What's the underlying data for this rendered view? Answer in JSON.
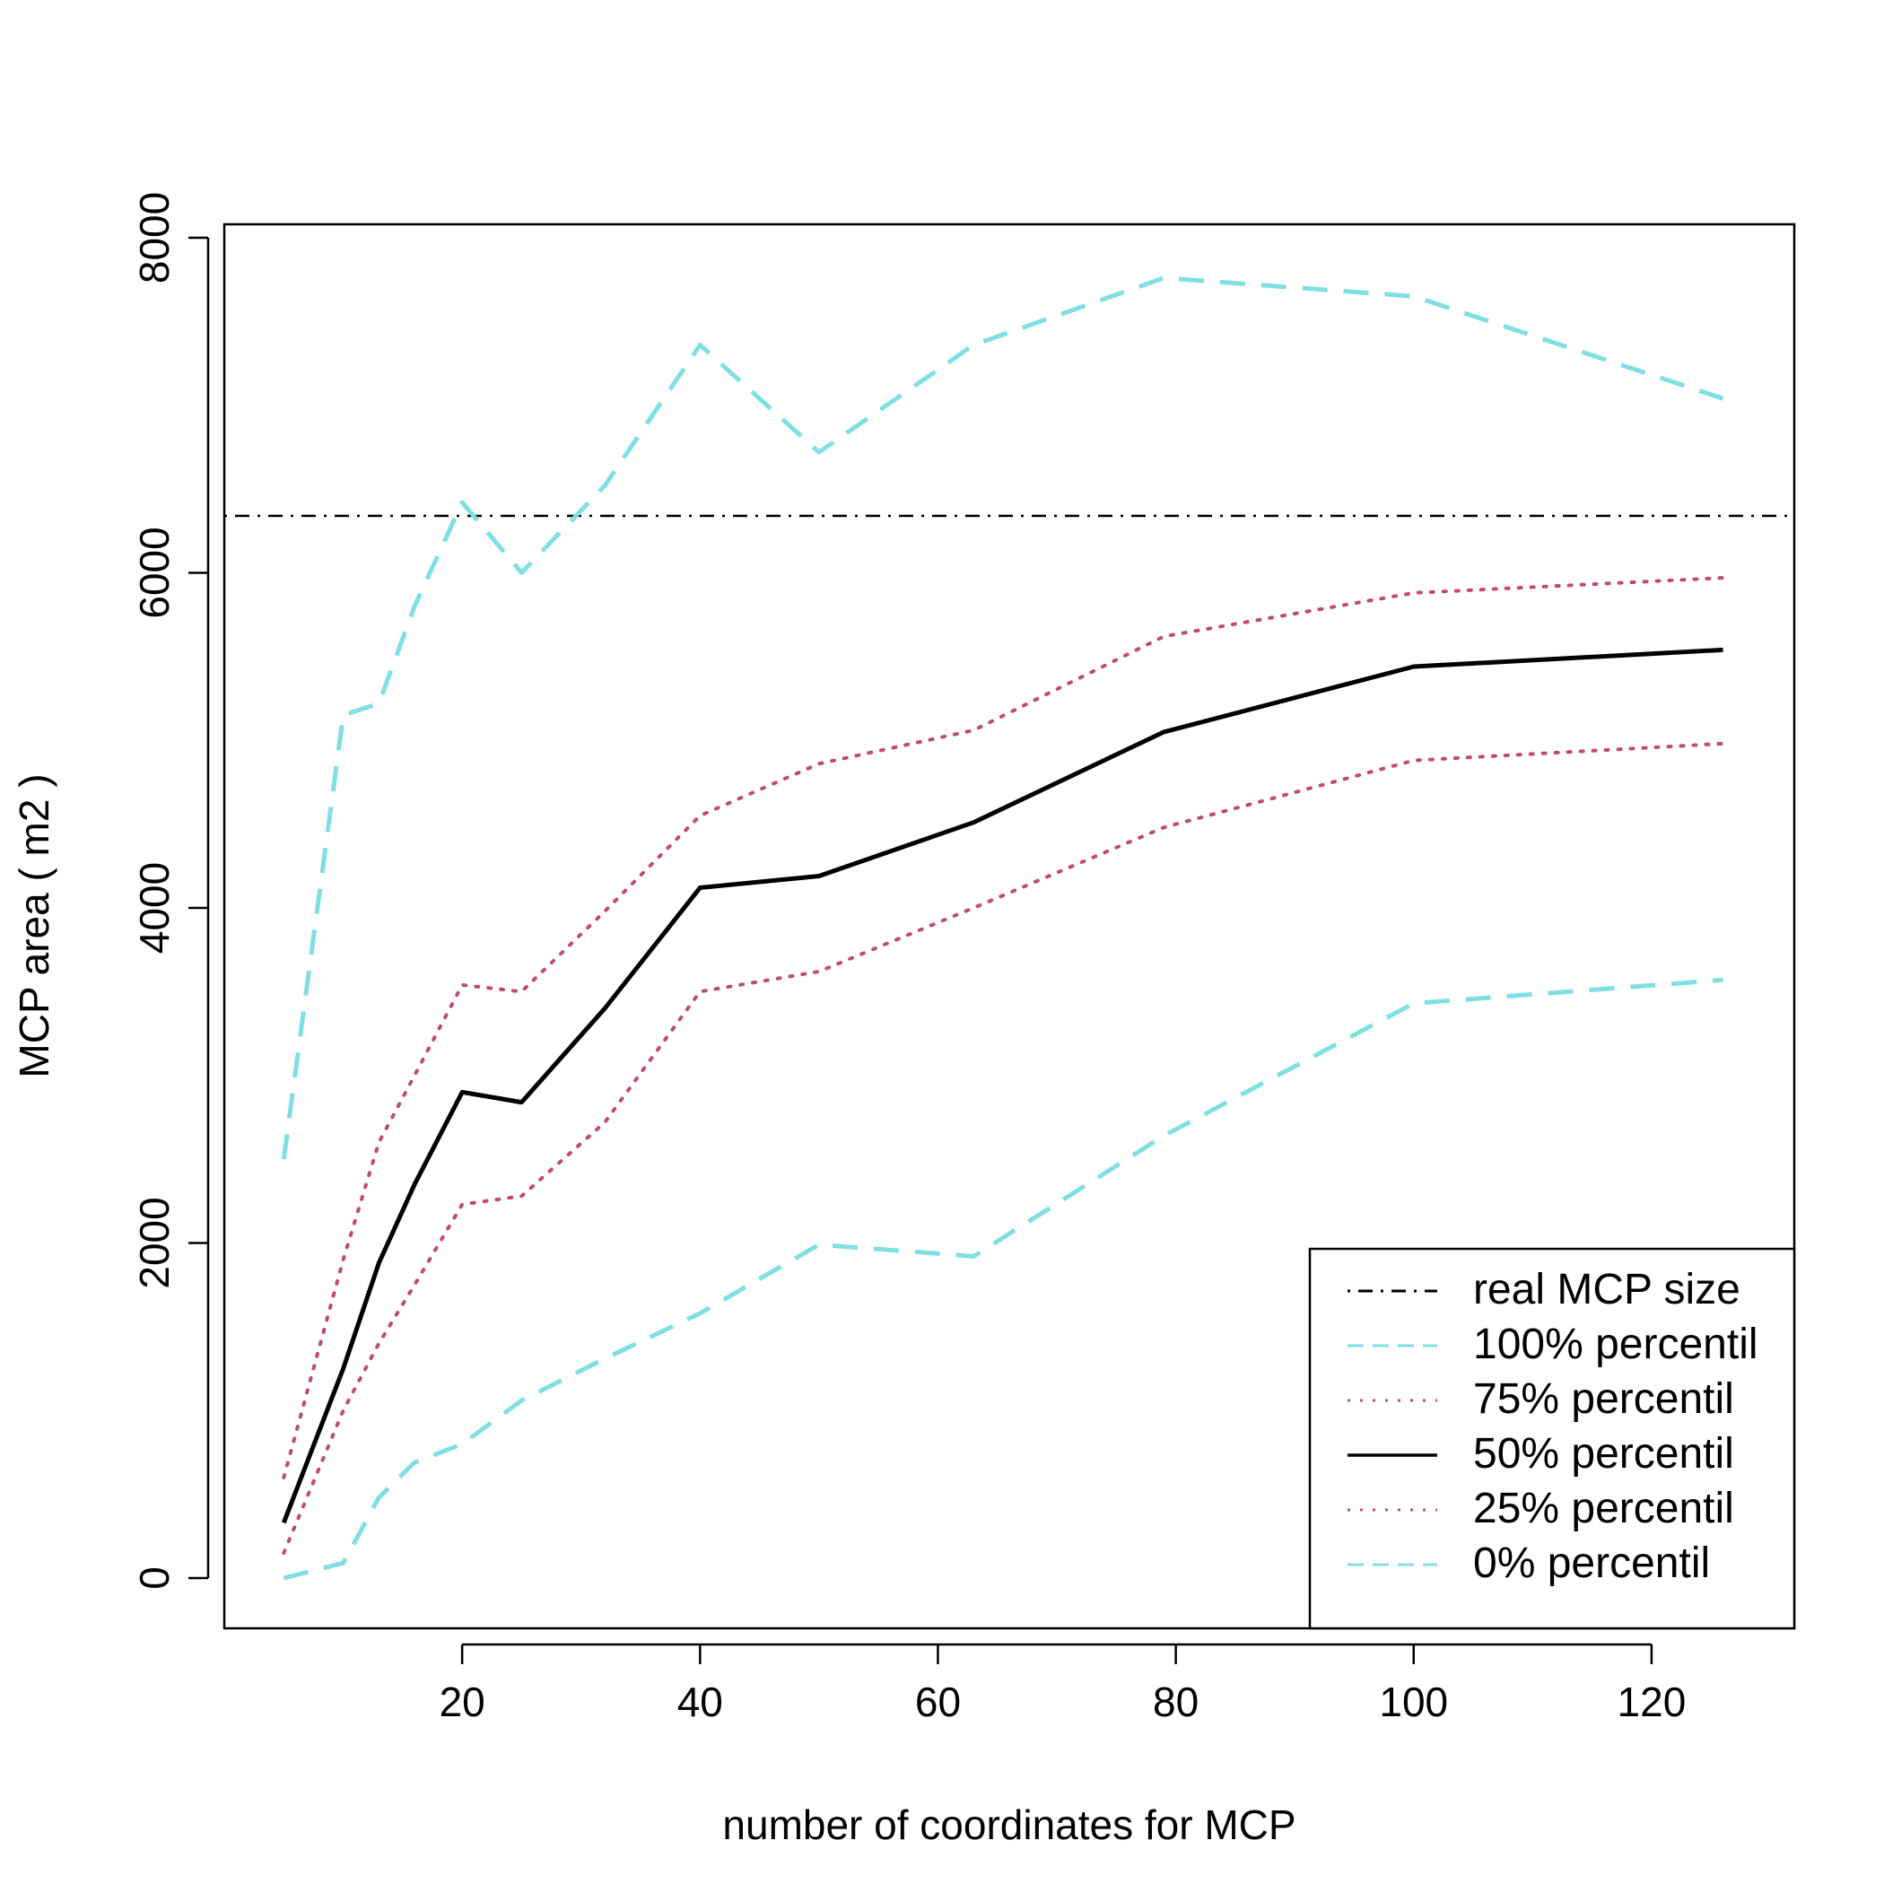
{
  "chart_data": {
    "type": "line",
    "title": "",
    "xlabel": "number of coordinates for MCP",
    "ylabel": "MCP area ( m2 )",
    "xlim": [
      0,
      132
    ],
    "ylim": [
      -300,
      8080
    ],
    "xticks": [
      20,
      40,
      60,
      80,
      100,
      120
    ],
    "yticks": [
      0,
      2000,
      4000,
      6000,
      8000
    ],
    "grid": false,
    "legend_position": "bottom-right",
    "x": [
      5,
      10,
      13,
      16,
      20,
      25,
      32,
      40,
      50,
      63,
      79,
      100,
      126
    ],
    "reference_line": {
      "name": "real MCP size",
      "value": 6340,
      "color": "#000000"
    },
    "series": [
      {
        "name": "100% percentil",
        "color": "#7fdfe2",
        "style": "dashed",
        "values": [
          2500,
          5150,
          5220,
          5800,
          6420,
          6000,
          6520,
          7360,
          6720,
          7360,
          7760,
          7650,
          7040
        ]
      },
      {
        "name": "75% percentil",
        "color": "#c04b6b",
        "style": "dotted",
        "values": [
          600,
          1900,
          2600,
          3000,
          3540,
          3500,
          3980,
          4550,
          4860,
          5060,
          5620,
          5880,
          5970
        ]
      },
      {
        "name": "50% percentil",
        "color": "#000000",
        "style": "solid",
        "values": [
          330,
          1250,
          1880,
          2350,
          2900,
          2840,
          3400,
          4120,
          4190,
          4510,
          5050,
          5440,
          5540
        ]
      },
      {
        "name": "25% percentil",
        "color": "#c04b6b",
        "style": "dotted",
        "values": [
          150,
          1000,
          1400,
          1750,
          2230,
          2280,
          2720,
          3500,
          3620,
          4000,
          4480,
          4880,
          4980
        ]
      },
      {
        "name": "0% percentil",
        "color": "#7fdfe2",
        "style": "dashed",
        "values": [
          0,
          90,
          480,
          690,
          800,
          1060,
          1310,
          1580,
          1990,
          1920,
          2640,
          3430,
          3570
        ]
      }
    ],
    "legend": [
      {
        "label": "real MCP size",
        "style": "dotdash",
        "color": "#000000"
      },
      {
        "label": "100% percentil",
        "style": "dashed",
        "color": "#7fdfe2"
      },
      {
        "label": "75% percentil",
        "style": "dotted",
        "color": "#c04b6b"
      },
      {
        "label": "50% percentil",
        "style": "solid",
        "color": "#000000"
      },
      {
        "label": "25% percentil",
        "style": "dotted",
        "color": "#c04b6b"
      },
      {
        "label": "0% percentil",
        "style": "dashed",
        "color": "#7fdfe2"
      }
    ]
  }
}
